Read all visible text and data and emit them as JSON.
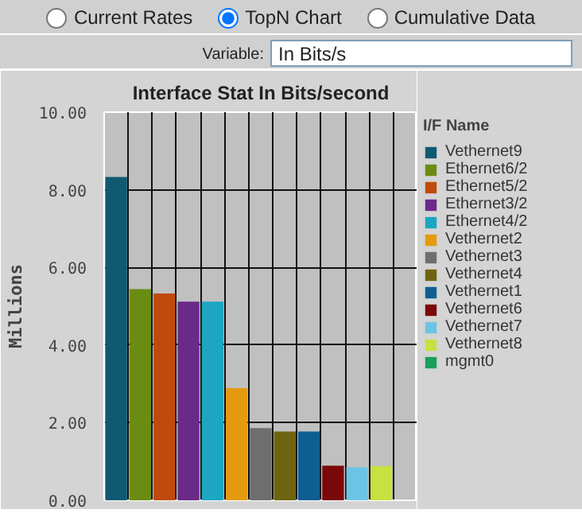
{
  "chart_data": {
    "type": "bar",
    "title": "Interface Stat In Bits/second",
    "ylabel": "Millions",
    "legend_title": "I/F Name",
    "annotations": [
      "Current Rates",
      "TopN Chart",
      "Cumulative Data",
      "Variable:",
      "In Bits/s"
    ],
    "categories": [
      null,
      null,
      null,
      null,
      null,
      null,
      null,
      null,
      null,
      null,
      null,
      null,
      null
    ],
    "series": [
      {
        "name": "Vethernet9",
        "color": "#0f5a72",
        "values": [
          8.33,
          null,
          null,
          null,
          null,
          null,
          null,
          null,
          null,
          null,
          null,
          null,
          null
        ]
      },
      {
        "name": "Ethernet6/2",
        "color": "#6b8c12",
        "values": [
          null,
          5.44,
          null,
          null,
          null,
          null,
          null,
          null,
          null,
          null,
          null,
          null,
          null
        ]
      },
      {
        "name": "Ethernet5/2",
        "color": "#c04a0c",
        "values": [
          null,
          null,
          5.33,
          null,
          null,
          null,
          null,
          null,
          null,
          null,
          null,
          null,
          null
        ]
      },
      {
        "name": "Ethernet3/2",
        "color": "#6a2a8a",
        "values": [
          null,
          null,
          null,
          5.12,
          null,
          null,
          null,
          null,
          null,
          null,
          null,
          null,
          null
        ]
      },
      {
        "name": "Ethernet4/2",
        "color": "#1ca6c2",
        "values": [
          null,
          null,
          null,
          null,
          5.12,
          null,
          null,
          null,
          null,
          null,
          null,
          null,
          null
        ]
      },
      {
        "name": "Vethernet2",
        "color": "#e49a0e",
        "values": [
          null,
          null,
          null,
          null,
          null,
          2.89,
          null,
          null,
          null,
          null,
          null,
          null,
          null
        ]
      },
      {
        "name": "Vethernet3",
        "color": "#6e6e6e",
        "values": [
          null,
          null,
          null,
          null,
          null,
          null,
          1.86,
          null,
          null,
          null,
          null,
          null,
          null
        ]
      },
      {
        "name": "Vethernet4",
        "color": "#6e6410",
        "values": [
          null,
          null,
          null,
          null,
          null,
          null,
          null,
          1.77,
          null,
          null,
          null,
          null,
          null
        ]
      },
      {
        "name": "Vethernet1",
        "color": "#0e5e92",
        "values": [
          null,
          null,
          null,
          null,
          null,
          null,
          null,
          null,
          1.77,
          null,
          null,
          null,
          null
        ]
      },
      {
        "name": "Vethernet6",
        "color": "#7a0808",
        "values": [
          null,
          null,
          null,
          null,
          null,
          null,
          null,
          null,
          null,
          0.89,
          null,
          null,
          null
        ]
      },
      {
        "name": "Vethernet7",
        "color": "#6cc4e4",
        "values": [
          null,
          null,
          null,
          null,
          null,
          null,
          null,
          null,
          null,
          null,
          0.85,
          null,
          null
        ]
      },
      {
        "name": "Vethernet8",
        "color": "#c8e040",
        "values": [
          null,
          null,
          null,
          null,
          null,
          null,
          null,
          null,
          null,
          null,
          null,
          0.88,
          null
        ]
      },
      {
        "name": "mgmt0",
        "color": "#1a9e5c",
        "values": [
          null,
          null,
          null,
          null,
          null,
          null,
          null,
          null,
          null,
          null,
          null,
          null,
          0
        ]
      }
    ],
    "ylim": [
      0,
      10
    ],
    "yticks": [
      {
        "value": 0,
        "label": "0.00"
      },
      {
        "value": 2,
        "label": "2.00"
      },
      {
        "value": 4,
        "label": "4.00"
      },
      {
        "value": 6,
        "label": "6.00"
      },
      {
        "value": 8,
        "label": "8.00"
      },
      {
        "value": 10,
        "label": "10.00"
      }
    ],
    "grid": true,
    "legend": "right",
    "tick_labels": "y"
  }
}
